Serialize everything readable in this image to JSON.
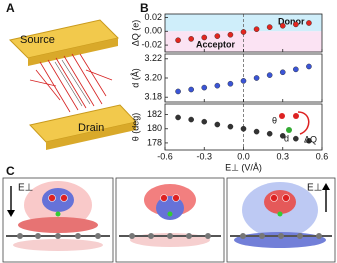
{
  "panel_labels": [
    "A",
    "B",
    "C"
  ],
  "panel_a": {
    "top": "Source",
    "bottom": "Drain"
  },
  "inset": {
    "theta": "θ",
    "d": "d",
    "dq": "ΔQ"
  },
  "panel_c": {
    "field_labels": [
      "E⊥",
      "E⊥"
    ]
  },
  "chart_data": [
    {
      "type": "scatter",
      "y_label": "ΔQ (e)",
      "annotations": [
        "Donor",
        "Acceptor"
      ],
      "color": "#e3261f",
      "x": [
        -0.5,
        -0.4,
        -0.3,
        -0.2,
        -0.1,
        0,
        0.1,
        0.2,
        0.3,
        0.4,
        0.5
      ],
      "values": [
        -0.013,
        -0.011,
        -0.009,
        -0.007,
        -0.005,
        -0.001,
        0.003,
        0.006,
        0.008,
        0.01,
        0.012
      ],
      "ylim": [
        -0.03,
        0.025
      ],
      "yticks": [
        -0.02,
        {
          "value": 0,
          "label": "0.00"
        },
        0.02
      ]
    },
    {
      "type": "scatter",
      "y_label": "d (Å)",
      "color": "#3b55d6",
      "x": [
        -0.5,
        -0.4,
        -0.3,
        -0.2,
        -0.1,
        0,
        0.1,
        0.2,
        0.3,
        0.4,
        0.5
      ],
      "values": [
        3.186,
        3.188,
        3.19,
        3.192,
        3.194,
        3.197,
        3.2,
        3.203,
        3.206,
        3.209,
        3.212
      ],
      "ylim": [
        3.175,
        3.225
      ],
      "yticks": [
        3.18,
        {
          "value": 3.2,
          "label": "3.20"
        },
        3.22
      ]
    },
    {
      "type": "scatter",
      "y_label": "θ (deg)",
      "x_label": "E⊥ (V/Å)",
      "color": "#333333",
      "x": [
        -0.5,
        -0.4,
        -0.3,
        -0.2,
        -0.1,
        0,
        0.1,
        0.2,
        0.3,
        0.4,
        0.5
      ],
      "values": [
        181.6,
        181.3,
        181.0,
        180.6,
        180.3,
        180.0,
        179.6,
        179.3,
        179.0,
        178.6,
        178.3
      ],
      "ylim": [
        177,
        183.5
      ],
      "yticks": [
        178,
        180,
        182
      ],
      "xlim": [
        -0.6,
        0.6
      ],
      "xticks": [
        -0.6,
        -0.3,
        {
          "value": 0,
          "label": "0.0"
        },
        0.3,
        0.6
      ]
    }
  ]
}
